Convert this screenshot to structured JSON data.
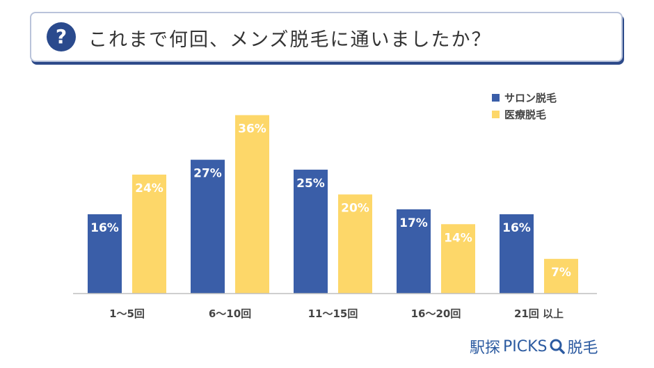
{
  "question": {
    "icon": "question-icon",
    "icon_glyph": "?",
    "text": "これまで何回、メンズ脱毛に通いましたか？"
  },
  "colors": {
    "salon": "#3a5ea8",
    "medical": "#fdd769",
    "axis": "#bfbfbf",
    "brand": "#2b5aa0"
  },
  "chart_data": {
    "type": "bar",
    "title": "",
    "xlabel": "",
    "ylabel": "",
    "ylim": [
      0,
      40
    ],
    "grid": false,
    "legend_position": "top-right",
    "categories": [
      "1〜5回",
      "6〜10回",
      "11〜15回",
      "16〜20回",
      "21回 以上"
    ],
    "series": [
      {
        "name": "サロン脱毛",
        "values": [
          16,
          27,
          25,
          17,
          16
        ],
        "labels": [
          "16%",
          "27%",
          "25%",
          "17%",
          "16%"
        ]
      },
      {
        "name": "医療脱毛",
        "values": [
          24,
          36,
          20,
          14,
          7
        ],
        "labels": [
          "24%",
          "36%",
          "20%",
          "14%",
          "7%"
        ]
      }
    ]
  },
  "brand": {
    "prefix": "駅探",
    "name": "PICKS",
    "icon": "magnifier-icon",
    "suffix": "脱毛"
  }
}
